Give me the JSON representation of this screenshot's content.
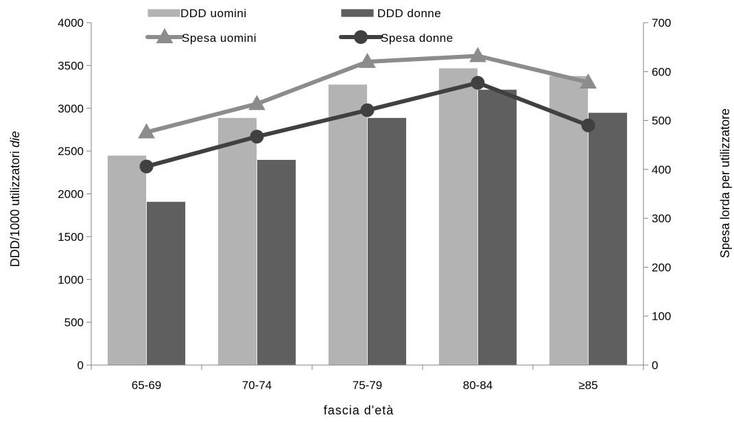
{
  "chart_data": {
    "type": "bar",
    "categories": [
      "65-69",
      "70-74",
      "75-79",
      "80-84",
      "≥85"
    ],
    "series": [
      {
        "name": "DDD uomini",
        "kind": "bar",
        "axis": "left",
        "color": "#b3b3b3",
        "values": [
          2450,
          2890,
          3280,
          3470,
          3380
        ]
      },
      {
        "name": "DDD donne",
        "kind": "bar",
        "axis": "left",
        "color": "#5f5f5f",
        "values": [
          1910,
          2400,
          2890,
          3220,
          2950
        ]
      },
      {
        "name": "Spesa uomini",
        "kind": "line",
        "marker": "triangle",
        "axis": "right",
        "color": "#8c8c8c",
        "values": [
          476,
          534,
          620,
          632,
          578
        ]
      },
      {
        "name": "Spesa donne",
        "kind": "line",
        "marker": "circle",
        "axis": "right",
        "color": "#404040",
        "values": [
          406,
          467,
          521,
          577,
          490
        ]
      }
    ],
    "xlabel": "fascia d'età",
    "ylabel_left_main": "DDD/1000 utilizzatori",
    "ylabel_left_italic": "die",
    "ylabel_right": "Spesa lorda per utilizzatore",
    "ylim_left": [
      0,
      4000
    ],
    "yticks_left": [
      0,
      500,
      1000,
      1500,
      2000,
      2500,
      3000,
      3500,
      4000
    ],
    "ylim_right": [
      0,
      700
    ],
    "yticks_right": [
      0,
      100,
      200,
      300,
      400,
      500,
      600,
      700
    ],
    "grid": false,
    "legend_position": "top"
  }
}
